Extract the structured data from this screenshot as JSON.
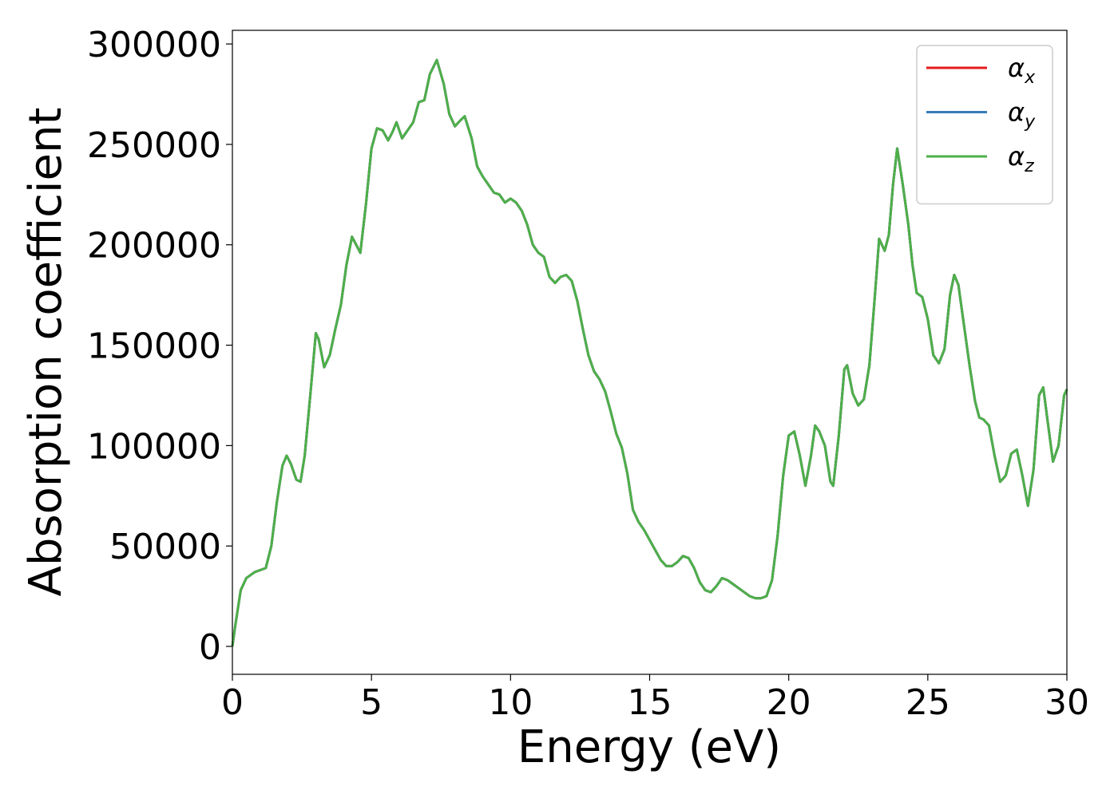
{
  "chart_data": {
    "type": "line",
    "xlabel": "Energy (eV)",
    "ylabel": "Absorption coefficient",
    "x": [
      0,
      0.1,
      0.3,
      0.5,
      0.8,
      1.0,
      1.2,
      1.4,
      1.6,
      1.8,
      1.95,
      2.1,
      2.3,
      2.45,
      2.6,
      2.8,
      3.0,
      3.1,
      3.3,
      3.5,
      3.7,
      3.9,
      4.1,
      4.3,
      4.45,
      4.6,
      4.8,
      5.0,
      5.2,
      5.4,
      5.6,
      5.75,
      5.9,
      6.1,
      6.3,
      6.5,
      6.7,
      6.9,
      7.1,
      7.35,
      7.6,
      7.8,
      8.0,
      8.2,
      8.35,
      8.6,
      8.8,
      9.0,
      9.2,
      9.4,
      9.6,
      9.8,
      10.0,
      10.2,
      10.4,
      10.6,
      10.8,
      11.0,
      11.2,
      11.4,
      11.6,
      11.8,
      12.0,
      12.2,
      12.4,
      12.6,
      12.8,
      13.0,
      13.2,
      13.4,
      13.6,
      13.8,
      14.0,
      14.2,
      14.4,
      14.6,
      14.8,
      15.0,
      15.2,
      15.4,
      15.6,
      15.8,
      16.0,
      16.2,
      16.4,
      16.6,
      16.8,
      17.0,
      17.2,
      17.4,
      17.6,
      17.8,
      18.0,
      18.2,
      18.4,
      18.6,
      18.8,
      19.0,
      19.2,
      19.4,
      19.6,
      19.8,
      20.0,
      20.2,
      20.4,
      20.6,
      20.8,
      20.95,
      21.1,
      21.3,
      21.5,
      21.6,
      21.8,
      22.0,
      22.1,
      22.3,
      22.5,
      22.7,
      22.9,
      23.1,
      23.25,
      23.45,
      23.6,
      23.75,
      23.9,
      24.1,
      24.3,
      24.45,
      24.6,
      24.8,
      25.0,
      25.2,
      25.4,
      25.6,
      25.8,
      25.95,
      26.1,
      26.3,
      26.5,
      26.7,
      26.85,
      27.0,
      27.2,
      27.4,
      27.6,
      27.8,
      28.0,
      28.2,
      28.4,
      28.6,
      28.8,
      29.0,
      29.15,
      29.3,
      29.5,
      29.7,
      29.9,
      30.0
    ],
    "series": [
      {
        "name": "αx",
        "color": "#e41a1c",
        "values": [
          0,
          10000,
          28000,
          34000,
          37000,
          38000,
          39000,
          50000,
          72000,
          90000,
          95000,
          91000,
          83000,
          82000,
          95000,
          125000,
          156000,
          153000,
          139000,
          145000,
          158000,
          170000,
          190000,
          204000,
          200000,
          196000,
          220000,
          248000,
          258000,
          257000,
          252000,
          256000,
          261000,
          253000,
          257000,
          261000,
          271000,
          272000,
          285000,
          292000,
          280000,
          265000,
          259000,
          262000,
          264000,
          253000,
          239000,
          234000,
          230000,
          226000,
          225000,
          221000,
          223000,
          221000,
          217000,
          210000,
          200000,
          196000,
          194000,
          184000,
          181000,
          184000,
          185000,
          182000,
          172000,
          158000,
          145000,
          137000,
          133000,
          127000,
          117000,
          106000,
          99000,
          86000,
          68000,
          62000,
          58000,
          53000,
          48000,
          43000,
          40000,
          40000,
          42000,
          45000,
          44000,
          39000,
          32000,
          28000,
          27000,
          30000,
          34000,
          33000,
          31000,
          29000,
          27000,
          25000,
          24000,
          24000,
          25000,
          33000,
          55000,
          85000,
          105000,
          107000,
          95000,
          80000,
          95000,
          110000,
          107000,
          100000,
          82000,
          80000,
          105000,
          138000,
          140000,
          126000,
          120000,
          123000,
          140000,
          175000,
          203000,
          197000,
          205000,
          230000,
          248000,
          230000,
          210000,
          190000,
          176000,
          174000,
          163000,
          145000,
          141000,
          148000,
          175000,
          185000,
          180000,
          160000,
          140000,
          122000,
          114000,
          113000,
          110000,
          95000,
          82000,
          85000,
          96000,
          98000,
          85000,
          70000,
          88000,
          125000,
          129000,
          113000,
          92000,
          100000,
          125000,
          128000
        ]
      },
      {
        "name": "αy",
        "color": "#377eb8",
        "values": [
          0,
          10000,
          28000,
          34000,
          37000,
          38000,
          39000,
          50000,
          72000,
          90000,
          95000,
          91000,
          83000,
          82000,
          95000,
          125000,
          156000,
          153000,
          139000,
          145000,
          158000,
          170000,
          190000,
          204000,
          200000,
          196000,
          220000,
          248000,
          258000,
          257000,
          252000,
          256000,
          261000,
          253000,
          257000,
          261000,
          271000,
          272000,
          285000,
          292000,
          280000,
          265000,
          259000,
          262000,
          264000,
          253000,
          239000,
          234000,
          230000,
          226000,
          225000,
          221000,
          223000,
          221000,
          217000,
          210000,
          200000,
          196000,
          194000,
          184000,
          181000,
          184000,
          185000,
          182000,
          172000,
          158000,
          145000,
          137000,
          133000,
          127000,
          117000,
          106000,
          99000,
          86000,
          68000,
          62000,
          58000,
          53000,
          48000,
          43000,
          40000,
          40000,
          42000,
          45000,
          44000,
          39000,
          32000,
          28000,
          27000,
          30000,
          34000,
          33000,
          31000,
          29000,
          27000,
          25000,
          24000,
          24000,
          25000,
          33000,
          55000,
          85000,
          105000,
          107000,
          95000,
          80000,
          95000,
          110000,
          107000,
          100000,
          82000,
          80000,
          105000,
          138000,
          140000,
          126000,
          120000,
          123000,
          140000,
          175000,
          203000,
          197000,
          205000,
          230000,
          248000,
          230000,
          210000,
          190000,
          176000,
          174000,
          163000,
          145000,
          141000,
          148000,
          175000,
          185000,
          180000,
          160000,
          140000,
          122000,
          114000,
          113000,
          110000,
          95000,
          82000,
          85000,
          96000,
          98000,
          85000,
          70000,
          88000,
          125000,
          129000,
          113000,
          92000,
          100000,
          125000,
          128000
        ]
      },
      {
        "name": "αz",
        "color": "#4daf4a",
        "values": [
          0,
          10000,
          28000,
          34000,
          37000,
          38000,
          39000,
          50000,
          72000,
          90000,
          95000,
          91000,
          83000,
          82000,
          95000,
          125000,
          156000,
          153000,
          139000,
          145000,
          158000,
          170000,
          190000,
          204000,
          200000,
          196000,
          220000,
          248000,
          258000,
          257000,
          252000,
          256000,
          261000,
          253000,
          257000,
          261000,
          271000,
          272000,
          285000,
          292000,
          280000,
          265000,
          259000,
          262000,
          264000,
          253000,
          239000,
          234000,
          230000,
          226000,
          225000,
          221000,
          223000,
          221000,
          217000,
          210000,
          200000,
          196000,
          194000,
          184000,
          181000,
          184000,
          185000,
          182000,
          172000,
          158000,
          145000,
          137000,
          133000,
          127000,
          117000,
          106000,
          99000,
          86000,
          68000,
          62000,
          58000,
          53000,
          48000,
          43000,
          40000,
          40000,
          42000,
          45000,
          44000,
          39000,
          32000,
          28000,
          27000,
          30000,
          34000,
          33000,
          31000,
          29000,
          27000,
          25000,
          24000,
          24000,
          25000,
          33000,
          55000,
          85000,
          105000,
          107000,
          95000,
          80000,
          95000,
          110000,
          107000,
          100000,
          82000,
          80000,
          105000,
          138000,
          140000,
          126000,
          120000,
          123000,
          140000,
          175000,
          203000,
          197000,
          205000,
          230000,
          248000,
          230000,
          210000,
          190000,
          176000,
          174000,
          163000,
          145000,
          141000,
          148000,
          175000,
          185000,
          180000,
          160000,
          140000,
          122000,
          114000,
          113000,
          110000,
          95000,
          82000,
          85000,
          96000,
          98000,
          85000,
          70000,
          88000,
          125000,
          129000,
          113000,
          92000,
          100000,
          125000,
          128000
        ]
      }
    ],
    "xlim": [
      0,
      30
    ],
    "xticks": [
      0,
      5,
      10,
      15,
      20,
      25,
      30
    ],
    "ylim": [
      -13900,
      306800
    ],
    "yticks": [
      0,
      50000,
      100000,
      150000,
      200000,
      250000,
      300000
    ],
    "grid": false,
    "legend": "upper right"
  }
}
